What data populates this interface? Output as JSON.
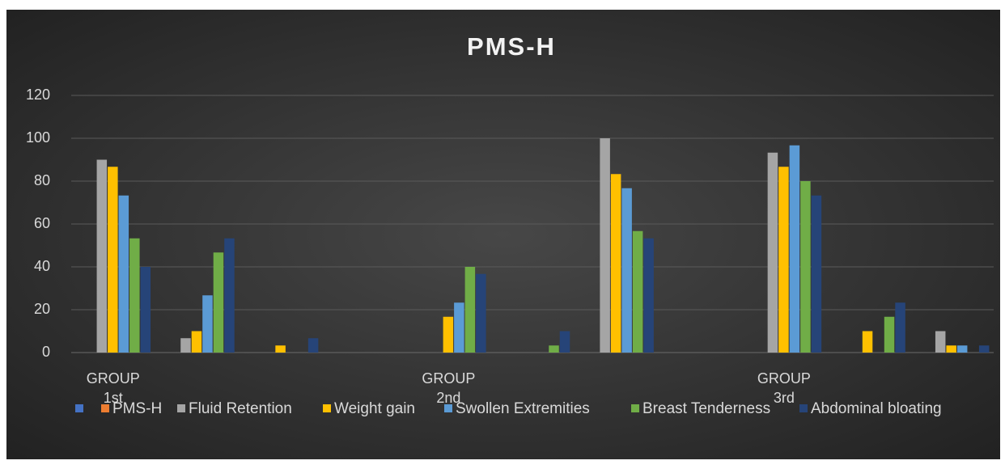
{
  "chart_data": {
    "type": "bar",
    "title": "PMS-H",
    "categories": [
      "GROUP 1st",
      null,
      null,
      null,
      "GROUP 2nd",
      null,
      null,
      null,
      "GROUP 3rd",
      null,
      null
    ],
    "series": [
      {
        "name": null,
        "color": "#4472c4",
        "values": [
          0,
          0,
          0,
          0,
          0,
          0,
          0,
          0,
          0,
          0,
          0
        ]
      },
      {
        "name": "PMS-H",
        "color": "#ed7d31",
        "values": [
          0,
          0,
          0,
          0,
          0,
          0,
          0,
          0,
          0,
          0,
          0
        ]
      },
      {
        "name": "Fluid Retention",
        "color": "#a5a5a5",
        "values": [
          90,
          6.7,
          0,
          0,
          0,
          0,
          100,
          0,
          93.3,
          0,
          10
        ]
      },
      {
        "name": "Weight gain",
        "color": "#ffc000",
        "values": [
          86.7,
          10,
          3.3,
          0,
          16.7,
          0,
          83.3,
          0,
          86.7,
          10,
          3.3
        ]
      },
      {
        "name": "Swollen Extremities",
        "color": "#5b9bd5",
        "values": [
          73.3,
          26.7,
          0,
          0,
          23.3,
          0,
          76.7,
          0,
          96.7,
          0,
          3.3
        ]
      },
      {
        "name": "Breast Tenderness",
        "color": "#70ad47",
        "values": [
          53.3,
          46.7,
          0,
          0,
          40,
          3.3,
          56.7,
          0,
          80,
          16.7,
          0
        ]
      },
      {
        "name": "Abdominal bloating",
        "color": "#264478",
        "values": [
          40,
          53.3,
          6.7,
          0,
          36.7,
          10,
          53.3,
          0,
          73.3,
          23.3,
          3.3
        ]
      }
    ],
    "ylim": [
      0,
      120
    ],
    "yticks": [
      0,
      20,
      40,
      60,
      80,
      100,
      120
    ],
    "grid": true,
    "legend": "bottom"
  }
}
